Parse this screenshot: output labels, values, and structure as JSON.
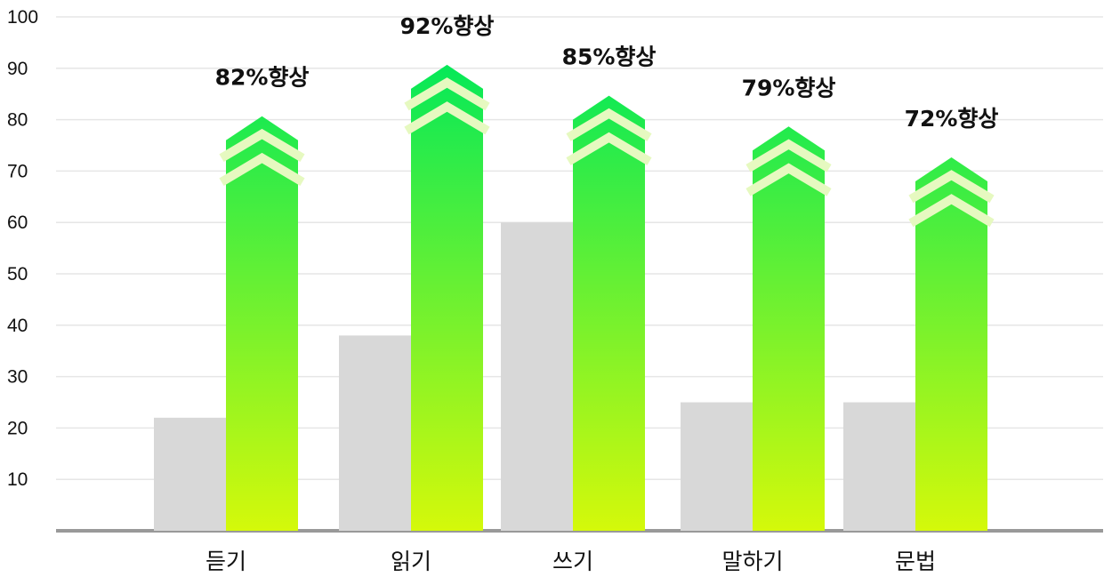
{
  "chart_data": {
    "type": "bar",
    "title": "",
    "xlabel": "",
    "ylabel": "",
    "ylim": [
      0,
      100
    ],
    "yticks": [
      "10",
      "20",
      "30",
      "40",
      "50",
      "60",
      "70",
      "80",
      "90",
      "100"
    ],
    "categories": [
      "듣기",
      "읽기",
      "쓰기",
      "말하기",
      "문법"
    ],
    "series": [
      {
        "values": [
          22,
          38,
          60,
          25,
          25
        ]
      },
      {
        "values": [
          76,
          86,
          80,
          74,
          68
        ]
      }
    ],
    "annotations": [
      "82%향상",
      "92%향상",
      "85%향상",
      "79%향상",
      "72%향상"
    ],
    "grid": true,
    "legend": "none"
  },
  "colors": {
    "before_bar": "#d8d8d8",
    "after_gradient_top": "#00e85a",
    "after_gradient_bottom": "#d4f90a",
    "chevron": "#e6f9c0",
    "gridline": "#e6e6e6",
    "axis": "#999999"
  }
}
